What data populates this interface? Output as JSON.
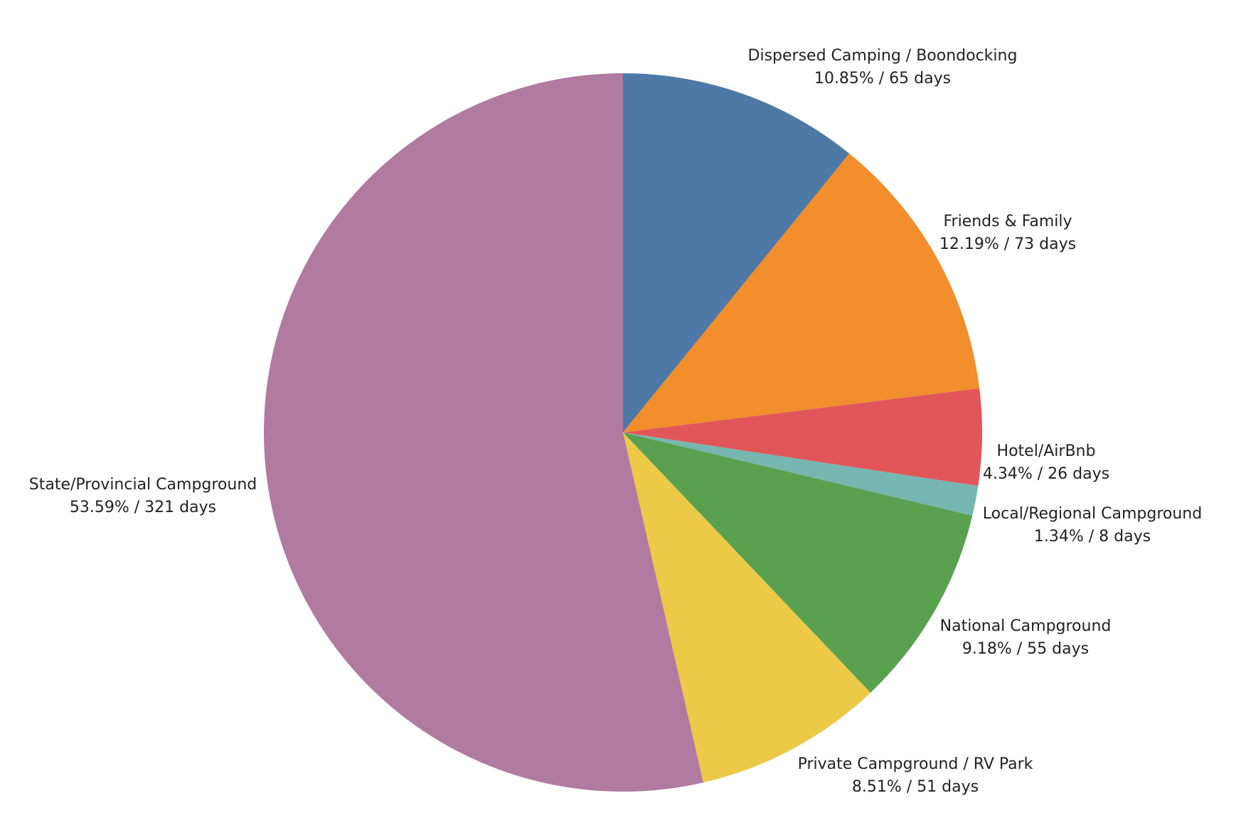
{
  "chart_data": {
    "type": "pie",
    "start_angle": "12 o'clock",
    "direction": "clockwise",
    "slices": [
      {
        "name": "Dispersed Camping / Boondocking",
        "percent": 10.85,
        "days": 65,
        "percent_label": "10.85% / 65 days",
        "color": "#4e79a7"
      },
      {
        "name": "Friends & Family",
        "percent": 12.19,
        "days": 73,
        "percent_label": "12.19% / 73 days",
        "color": "#f28e2b"
      },
      {
        "name": "Hotel/AirBnb",
        "percent": 4.34,
        "days": 26,
        "percent_label": "4.34% / 26 days",
        "color": "#e15759"
      },
      {
        "name": "Local/Regional Campground",
        "percent": 1.34,
        "days": 8,
        "percent_label": "1.34% / 8 days",
        "color": "#76b7b2"
      },
      {
        "name": "National Campground",
        "percent": 9.18,
        "days": 55,
        "percent_label": "9.18% / 55 days",
        "color": "#59a14f"
      },
      {
        "name": "Private Campground / RV Park",
        "percent": 8.51,
        "days": 51,
        "percent_label": "8.51% / 51 days",
        "color": "#edc948"
      },
      {
        "name": "State/Provincial Campground",
        "percent": 53.59,
        "days": 321,
        "percent_label": "53.59% / 321 days",
        "color": "#b07aa1"
      }
    ]
  }
}
